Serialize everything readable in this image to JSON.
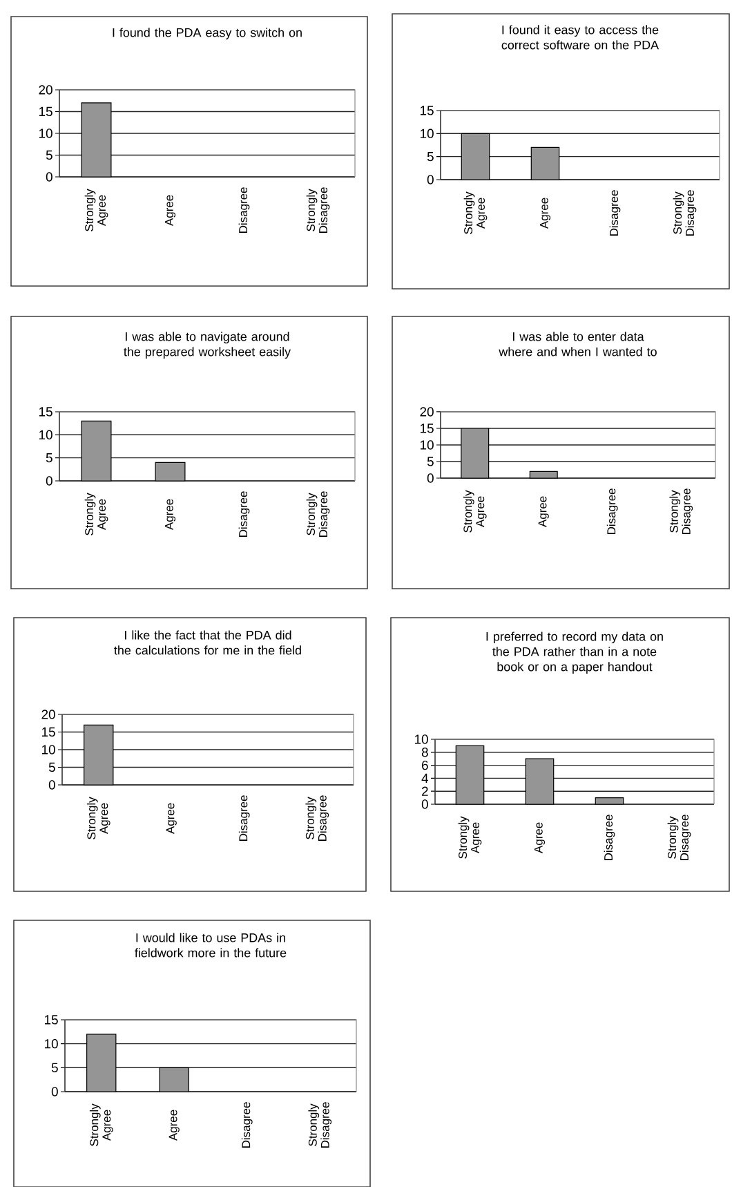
{
  "chart_data": [
    {
      "type": "bar",
      "title": "I found the PDA easy to switch on",
      "categories": [
        "Strongly Agree",
        "Agree",
        "Disagree",
        "Strongly Disagree"
      ],
      "values": [
        17,
        0,
        0,
        0
      ],
      "color": "#959595",
      "ylim": [
        0,
        20
      ],
      "yticks": [
        0,
        5,
        10,
        15,
        20
      ],
      "grid": "y"
    },
    {
      "type": "bar",
      "title": "I found it easy to access the correct software on the PDA",
      "categories": [
        "Strongly Agree",
        "Agree",
        "Disagree",
        "Strongly Disagree"
      ],
      "values": [
        10,
        7,
        0,
        0
      ],
      "color": "#959595",
      "ylim": [
        0,
        15
      ],
      "yticks": [
        0,
        5,
        10,
        15
      ],
      "grid": "y"
    },
    {
      "type": "bar",
      "title": "I was able to navigate around the prepared worksheet easily",
      "categories": [
        "Strongly Agree",
        "Agree",
        "Disagree",
        "Strongly Disagree"
      ],
      "values": [
        13,
        4,
        0,
        0
      ],
      "color": "#959595",
      "ylim": [
        0,
        15
      ],
      "yticks": [
        0,
        5,
        10,
        15
      ],
      "grid": "y"
    },
    {
      "type": "bar",
      "title": "I was able to enter data where and when I wanted to",
      "categories": [
        "Strongly Agree",
        "Agree",
        "Disagree",
        "Strongly Disagree"
      ],
      "values": [
        15,
        2,
        0,
        0
      ],
      "color": "#959595",
      "ylim": [
        0,
        20
      ],
      "yticks": [
        0,
        5,
        10,
        15,
        20
      ],
      "grid": "y"
    },
    {
      "type": "bar",
      "title": "I like the fact that the PDA did the calculations for me in the field",
      "categories": [
        "Strongly Agree",
        "Agree",
        "Disagree",
        "Strongly Disagree"
      ],
      "values": [
        17,
        0,
        0,
        0
      ],
      "color": "#959595",
      "ylim": [
        0,
        20
      ],
      "yticks": [
        0,
        5,
        10,
        15,
        20
      ],
      "grid": "y"
    },
    {
      "type": "bar",
      "title": "I preferred to record my data on the PDA rather than in a note book or on a paper handout",
      "categories": [
        "Strongly Agree",
        "Agree",
        "Disagree",
        "Strongly Disagree"
      ],
      "values": [
        9,
        7,
        1,
        0
      ],
      "color": "#959595",
      "ylim": [
        0,
        10
      ],
      "yticks": [
        0,
        2,
        4,
        6,
        8,
        10
      ],
      "grid": "y"
    },
    {
      "type": "bar",
      "title": "I would like to use PDAs in fieldwork more in the future",
      "categories": [
        "Strongly Agree",
        "Agree",
        "Disagree",
        "Strongly Disagree"
      ],
      "values": [
        12,
        5,
        0,
        0
      ],
      "color": "#959595",
      "ylim": [
        0,
        15
      ],
      "yticks": [
        0,
        5,
        10,
        15
      ],
      "grid": "y"
    }
  ]
}
